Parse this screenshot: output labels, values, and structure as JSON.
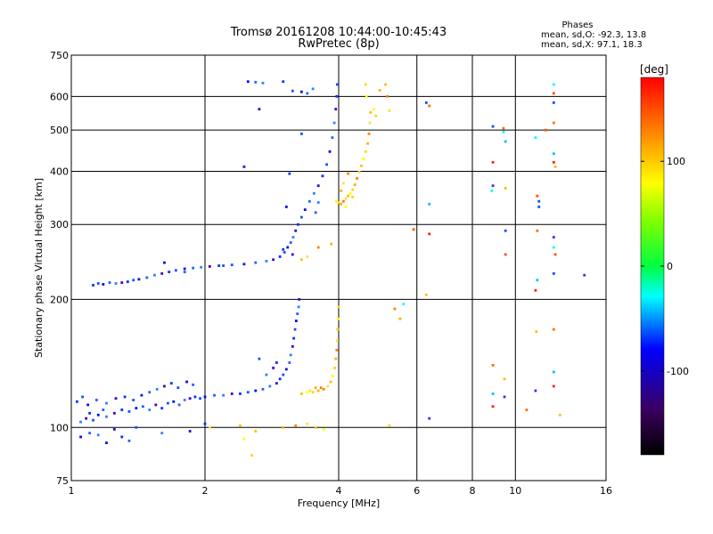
{
  "chart_data": {
    "type": "scatter",
    "title": "Tromsø 20161208 10:44:00-10:45:43",
    "subtitle": "RwPretec (8p)",
    "xlabel": "Frequency [MHz]",
    "ylabel": "Stationary phase Virtual Height [km]",
    "x_scale": "log",
    "y_scale": "log",
    "xlim": [
      1,
      16
    ],
    "ylim": [
      75,
      750
    ],
    "x_ticks": [
      1,
      2,
      4,
      6,
      8,
      10,
      16
    ],
    "x_tick_labels": [
      "1",
      "2",
      "4",
      "6",
      "8",
      "10",
      "16"
    ],
    "y_ticks": [
      75,
      100,
      200,
      300,
      400,
      500,
      600,
      750
    ],
    "y_tick_labels": [
      "75",
      "100",
      "200",
      "300",
      "400",
      "500",
      "600",
      "750"
    ],
    "x_gridlines": [
      2,
      4,
      6,
      8,
      10
    ],
    "y_gridlines": [
      100,
      200,
      300,
      400,
      500,
      600
    ],
    "grid": true,
    "stats": {
      "heading": "Phases",
      "line_o": "mean, sd,O: -92.3, 13.8",
      "line_x": "mean, sd,X:  97.1, 18.3"
    },
    "colorbar": {
      "label": "[deg]",
      "range": [
        -180,
        180
      ],
      "ticks": [
        -100,
        0,
        100
      ],
      "tick_labels": [
        "-100",
        "0",
        "100"
      ]
    },
    "series": [
      {
        "points": [
          [
            1.12,
            216
          ],
          [
            1.15,
            218
          ],
          [
            1.18,
            217
          ],
          [
            1.22,
            219
          ],
          [
            1.26,
            218
          ],
          [
            1.3,
            219
          ],
          [
            1.34,
            220
          ],
          [
            1.38,
            222
          ],
          [
            1.42,
            223
          ],
          [
            1.48,
            225
          ],
          [
            1.54,
            228
          ],
          [
            1.6,
            230
          ],
          [
            1.66,
            232
          ],
          [
            1.72,
            234
          ],
          [
            1.8,
            236
          ],
          [
            1.88,
            237
          ],
          [
            1.96,
            238
          ],
          [
            2.05,
            239
          ],
          [
            2.15,
            240
          ],
          [
            2.3,
            241
          ],
          [
            2.45,
            242
          ],
          [
            2.6,
            244
          ],
          [
            2.75,
            246
          ],
          [
            2.85,
            248
          ],
          [
            2.95,
            252
          ],
          [
            3.02,
            258
          ],
          [
            3.07,
            265
          ],
          [
            3.12,
            272
          ],
          [
            3.16,
            280
          ],
          [
            3.2,
            290
          ],
          [
            3.24,
            300
          ],
          [
            3.3,
            312
          ],
          [
            3.36,
            325
          ],
          [
            3.44,
            340
          ],
          [
            3.52,
            355
          ],
          [
            3.6,
            370
          ],
          [
            3.68,
            390
          ],
          [
            3.76,
            415
          ],
          [
            3.82,
            445
          ],
          [
            3.87,
            480
          ],
          [
            3.91,
            520
          ],
          [
            3.94,
            560
          ],
          [
            3.96,
            600
          ],
          [
            3.97,
            640
          ],
          [
            2.5,
            650
          ],
          [
            2.6,
            648
          ],
          [
            2.7,
            645
          ],
          [
            2.65,
            560
          ],
          [
            3.0,
            650
          ],
          [
            3.15,
            618
          ],
          [
            3.3,
            615
          ],
          [
            3.4,
            610
          ],
          [
            3.5,
            625
          ],
          [
            2.45,
            410
          ],
          [
            3.1,
            395
          ],
          [
            3.3,
            490
          ],
          [
            3.05,
            330
          ],
          [
            3.55,
            320
          ],
          [
            3.6,
            338
          ],
          [
            3.15,
            255
          ],
          [
            3.0,
            262
          ],
          [
            2.2,
            240
          ],
          [
            1.62,
            244
          ],
          [
            1.8,
            232
          ],
          [
            1.05,
            103
          ],
          [
            1.08,
            105
          ],
          [
            1.1,
            108
          ],
          [
            1.12,
            104
          ],
          [
            1.15,
            107
          ],
          [
            1.18,
            110
          ],
          [
            1.2,
            106
          ],
          [
            1.25,
            108
          ],
          [
            1.3,
            110
          ],
          [
            1.35,
            109
          ],
          [
            1.4,
            111
          ],
          [
            1.45,
            112
          ],
          [
            1.5,
            110
          ],
          [
            1.55,
            113
          ],
          [
            1.6,
            111
          ],
          [
            1.65,
            114
          ],
          [
            1.7,
            115
          ],
          [
            1.75,
            113
          ],
          [
            1.8,
            116
          ],
          [
            1.85,
            117
          ],
          [
            1.9,
            118
          ],
          [
            1.95,
            117
          ],
          [
            2.0,
            118
          ],
          [
            2.1,
            119
          ],
          [
            2.2,
            119
          ],
          [
            2.3,
            120
          ],
          [
            2.4,
            120
          ],
          [
            2.5,
            121
          ],
          [
            2.6,
            122
          ],
          [
            2.7,
            123
          ],
          [
            2.8,
            125
          ],
          [
            2.9,
            127
          ],
          [
            2.95,
            130
          ],
          [
            3.0,
            133
          ],
          [
            3.05,
            137
          ],
          [
            3.1,
            142
          ],
          [
            3.12,
            148
          ],
          [
            3.15,
            155
          ],
          [
            3.17,
            162
          ],
          [
            3.19,
            170
          ],
          [
            3.21,
            178
          ],
          [
            3.23,
            185
          ],
          [
            3.25,
            192
          ],
          [
            3.26,
            200
          ],
          [
            1.03,
            115
          ],
          [
            1.06,
            118
          ],
          [
            1.09,
            113
          ],
          [
            1.14,
            116
          ],
          [
            1.2,
            114
          ],
          [
            1.26,
            117
          ],
          [
            1.32,
            118
          ],
          [
            1.38,
            116
          ],
          [
            1.44,
            119
          ],
          [
            1.5,
            121
          ],
          [
            1.56,
            123
          ],
          [
            1.62,
            125
          ],
          [
            1.68,
            127
          ],
          [
            1.74,
            124
          ],
          [
            1.82,
            128
          ],
          [
            1.88,
            126
          ],
          [
            2.75,
            133
          ],
          [
            2.85,
            138
          ],
          [
            2.9,
            142
          ],
          [
            2.65,
            145
          ],
          [
            1.05,
            95
          ],
          [
            1.1,
            97
          ],
          [
            1.15,
            96
          ],
          [
            1.25,
            99
          ],
          [
            1.3,
            95
          ],
          [
            1.4,
            100
          ],
          [
            1.2,
            92
          ],
          [
            1.35,
            93
          ],
          [
            1.6,
            97
          ],
          [
            1.85,
            98
          ],
          [
            2.0,
            102
          ]
        ]
      },
      {
        "points": [
          [
            3.95,
            340
          ],
          [
            4.0,
            338
          ],
          [
            4.05,
            335
          ],
          [
            4.1,
            340
          ],
          [
            4.15,
            345
          ],
          [
            4.2,
            350
          ],
          [
            4.25,
            355
          ],
          [
            4.3,
            362
          ],
          [
            4.35,
            372
          ],
          [
            4.4,
            385
          ],
          [
            4.45,
            398
          ],
          [
            4.5,
            412
          ],
          [
            4.55,
            428
          ],
          [
            4.6,
            445
          ],
          [
            4.65,
            465
          ],
          [
            4.68,
            490
          ],
          [
            4.7,
            520
          ],
          [
            4.72,
            550
          ],
          [
            4.62,
            600
          ],
          [
            4.6,
            640
          ],
          [
            4.95,
            620
          ],
          [
            5.15,
            600
          ],
          [
            5.2,
            555
          ],
          [
            5.1,
            640
          ],
          [
            4.8,
            560
          ],
          [
            4.85,
            540
          ],
          [
            3.85,
            270
          ],
          [
            3.6,
            265
          ],
          [
            3.4,
            252
          ],
          [
            3.3,
            248
          ],
          [
            4.15,
            330
          ],
          [
            4.3,
            348
          ],
          [
            4.05,
            360
          ],
          [
            4.2,
            395
          ],
          [
            4.1,
            375
          ],
          [
            3.3,
            120
          ],
          [
            3.4,
            121
          ],
          [
            3.5,
            121
          ],
          [
            3.6,
            122
          ],
          [
            3.7,
            123
          ],
          [
            3.78,
            125
          ],
          [
            3.84,
            128
          ],
          [
            3.88,
            132
          ],
          [
            3.92,
            138
          ],
          [
            3.94,
            145
          ],
          [
            3.96,
            152
          ],
          [
            3.97,
            160
          ],
          [
            3.98,
            170
          ],
          [
            3.99,
            180
          ],
          [
            4.0,
            192
          ],
          [
            3.55,
            124
          ],
          [
            3.65,
            124
          ],
          [
            3.45,
            122
          ],
          [
            2.4,
            101
          ],
          [
            2.45,
            94
          ],
          [
            2.55,
            86
          ],
          [
            3.0,
            100
          ],
          [
            3.2,
            101
          ],
          [
            3.4,
            102
          ],
          [
            3.55,
            100
          ],
          [
            3.7,
            99
          ],
          [
            5.2,
            101
          ],
          [
            5.5,
            180
          ],
          [
            5.35,
            190
          ],
          [
            2.05,
            100
          ],
          [
            2.6,
            98
          ]
        ]
      },
      {
        "points": [
          [
            6.3,
            580
          ],
          [
            6.4,
            570
          ],
          [
            6.4,
            335
          ],
          [
            6.4,
            285
          ],
          [
            6.3,
            205
          ],
          [
            6.4,
            105
          ],
          [
            5.6,
            195
          ],
          [
            5.9,
            292
          ],
          [
            8.9,
            510
          ],
          [
            9.4,
            505
          ],
          [
            9.5,
            470
          ],
          [
            8.9,
            420
          ],
          [
            9.5,
            365
          ],
          [
            8.9,
            370
          ],
          [
            8.85,
            360
          ],
          [
            9.5,
            255
          ],
          [
            9.5,
            290
          ],
          [
            8.9,
            140
          ],
          [
            8.9,
            120
          ],
          [
            8.9,
            112
          ],
          [
            9.45,
            130
          ],
          [
            9.45,
            118
          ],
          [
            11.1,
            480
          ],
          [
            11.2,
            350
          ],
          [
            11.3,
            340
          ],
          [
            11.2,
            290
          ],
          [
            11.2,
            222
          ],
          [
            11.1,
            210
          ],
          [
            11.15,
            168
          ],
          [
            11.1,
            122
          ],
          [
            12.2,
            640
          ],
          [
            12.2,
            610
          ],
          [
            12.2,
            580
          ],
          [
            12.2,
            520
          ],
          [
            12.2,
            440
          ],
          [
            12.2,
            420
          ],
          [
            12.3,
            410
          ],
          [
            12.2,
            280
          ],
          [
            12.2,
            265
          ],
          [
            12.3,
            255
          ],
          [
            12.2,
            230
          ],
          [
            12.2,
            170
          ],
          [
            12.2,
            135
          ],
          [
            12.2,
            125
          ],
          [
            12.6,
            107
          ],
          [
            14.3,
            228
          ],
          [
            9.4,
            495
          ],
          [
            11.7,
            500
          ],
          [
            11.3,
            330
          ],
          [
            10.6,
            110
          ]
        ]
      }
    ]
  }
}
